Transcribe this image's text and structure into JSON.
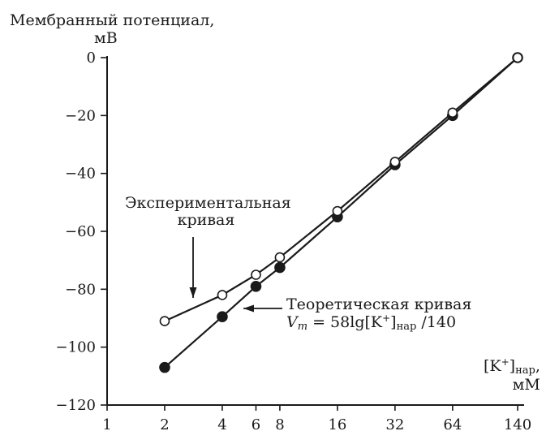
{
  "chart_data": {
    "type": "line",
    "ylabel_line1": "Мембранный потенциал,",
    "ylabel_line2": "мВ",
    "xlabel_main": "[K",
    "xlabel_sup": "+",
    "xlabel_bracket": "]",
    "xlabel_sub": "нар",
    "xlabel_comma": ",",
    "xlabel_unit": "мМ",
    "x_scale": "log",
    "x_ticks": [
      "1",
      "2",
      "4",
      "6",
      "8",
      "16",
      "32",
      "64",
      "140"
    ],
    "x_tick_values": [
      1,
      2,
      4,
      6,
      8,
      16,
      32,
      64,
      140
    ],
    "xlim": [
      1,
      140
    ],
    "y_ticks": [
      "0",
      "−20",
      "−40",
      "−60",
      "−80",
      "−100",
      "−120"
    ],
    "y_tick_values": [
      0,
      -20,
      -40,
      -60,
      -80,
      -100,
      -120
    ],
    "ylim": [
      -120,
      0
    ],
    "grid": false,
    "series": [
      {
        "name": "Экспериментальная кривая",
        "marker": "open-circle",
        "x": [
          2,
          4,
          6,
          8,
          16,
          32,
          64,
          140
        ],
        "y": [
          -91,
          -82,
          -75,
          -69,
          -53,
          -36,
          -19,
          0
        ]
      },
      {
        "name": "Теоретическая кривая",
        "marker": "filled-circle",
        "x": [
          2,
          4,
          6,
          8,
          16,
          32,
          64,
          140
        ],
        "y": [
          -107,
          -89.5,
          -79,
          -72.5,
          -55,
          -37,
          -20,
          0
        ]
      }
    ],
    "annotations": {
      "experimental_line1": "Экспериментальная",
      "experimental_line2": "кривая",
      "theoretical_line1": "Теоретическая кривая",
      "formula_v": "V",
      "formula_m": "m",
      "formula_eq": " = 58lg[K",
      "formula_sup": "+",
      "formula_bracket": "]",
      "formula_sub": "нар",
      "formula_tail": " /140"
    }
  }
}
